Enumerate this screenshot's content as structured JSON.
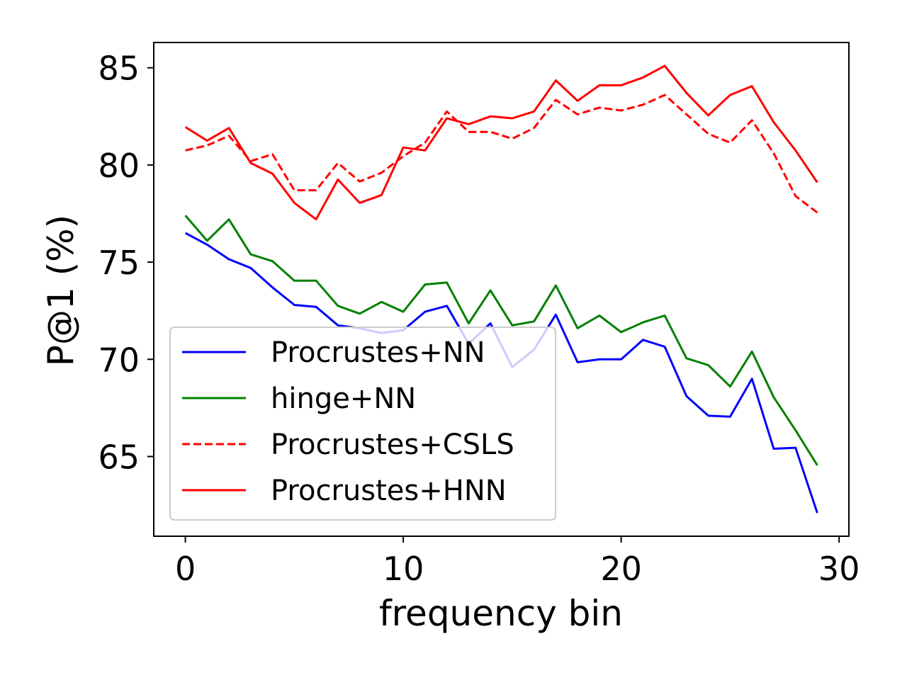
{
  "chart_data": {
    "type": "line",
    "xlabel": "frequency bin",
    "ylabel": "P@1 (%)",
    "xlim": [
      -1.45,
      30.45
    ],
    "ylim": [
      60.9,
      86.3
    ],
    "xticks": [
      0,
      10,
      20,
      30
    ],
    "yticks": [
      65,
      70,
      75,
      80,
      85
    ],
    "grid": false,
    "legend_position": "lower-left",
    "x": [
      0,
      1,
      2,
      3,
      4,
      5,
      6,
      7,
      8,
      9,
      10,
      11,
      12,
      13,
      14,
      15,
      16,
      17,
      18,
      19,
      20,
      21,
      22,
      23,
      24,
      25,
      26,
      27,
      28,
      29
    ],
    "series": [
      {
        "name": "Procrustes+NN",
        "color": "#0000ff",
        "dash": "solid",
        "values": [
          76.5,
          75.9,
          75.15,
          74.7,
          73.7,
          72.8,
          72.7,
          71.75,
          71.6,
          71.35,
          71.5,
          72.45,
          72.75,
          70.8,
          71.85,
          69.6,
          70.5,
          72.3,
          69.85,
          70.0,
          70.0,
          71.0,
          70.65,
          68.1,
          67.1,
          67.05,
          69.0,
          65.4,
          65.45,
          62.1
        ]
      },
      {
        "name": "hinge+NN",
        "color": "#008000",
        "dash": "solid",
        "values": [
          77.4,
          76.1,
          77.2,
          75.4,
          75.05,
          74.05,
          74.05,
          72.75,
          72.35,
          72.95,
          72.45,
          73.85,
          73.95,
          71.85,
          73.55,
          71.75,
          71.95,
          73.8,
          71.6,
          72.25,
          71.4,
          71.9,
          72.25,
          70.05,
          69.7,
          68.6,
          70.4,
          68.05,
          66.35,
          64.55
        ]
      },
      {
        "name": "Procrustes+CSLS",
        "color": "#ff0000",
        "dash": "dashed",
        "values": [
          80.75,
          81.0,
          81.5,
          80.2,
          80.55,
          78.7,
          78.7,
          80.1,
          79.15,
          79.6,
          80.45,
          81.15,
          82.75,
          81.7,
          81.7,
          81.35,
          81.9,
          83.35,
          82.6,
          82.95,
          82.8,
          83.1,
          83.6,
          82.6,
          81.6,
          81.15,
          82.3,
          80.6,
          78.4,
          77.55
        ]
      },
      {
        "name": "Procrustes+HNN",
        "color": "#ff0000",
        "dash": "solid",
        "values": [
          81.95,
          81.25,
          81.9,
          80.1,
          79.55,
          78.05,
          77.2,
          79.25,
          78.05,
          78.45,
          80.9,
          80.75,
          82.4,
          82.1,
          82.5,
          82.4,
          82.75,
          84.35,
          83.3,
          84.1,
          84.1,
          84.5,
          85.1,
          83.7,
          82.55,
          83.6,
          84.05,
          82.2,
          80.75,
          79.1
        ]
      }
    ]
  }
}
